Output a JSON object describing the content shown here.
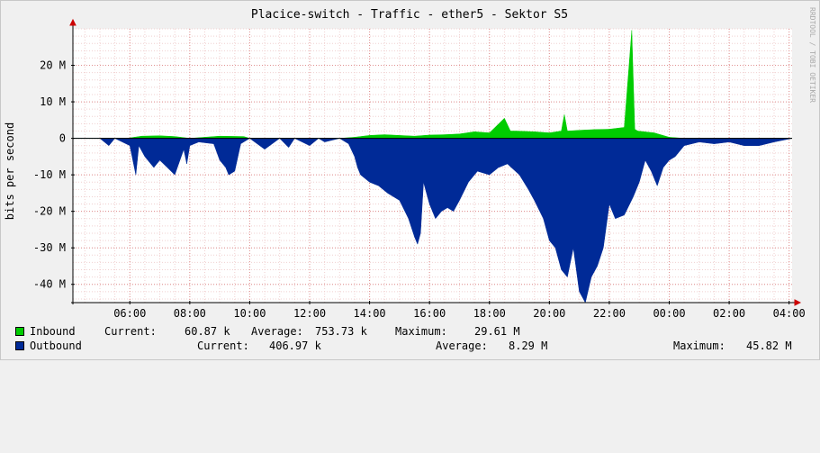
{
  "chart_data": {
    "type": "area",
    "title": "Placice-switch - Traffic - ether5 - Sektor S5",
    "ylabel": "bits per second",
    "watermark": "RRDTOOL / TOBI OETIKER",
    "y_ticks": [
      "20 M",
      "10 M",
      "0",
      "-10 M",
      "-20 M",
      "-30 M",
      "-40 M"
    ],
    "y_tick_values": [
      20,
      10,
      0,
      -10,
      -20,
      -30,
      -40
    ],
    "x_ticks": [
      "06:00",
      "08:00",
      "10:00",
      "12:00",
      "14:00",
      "16:00",
      "18:00",
      "20:00",
      "22:00",
      "00:00",
      "02:00",
      "04:00"
    ],
    "x_tick_hours": [
      6,
      8,
      10,
      12,
      14,
      16,
      18,
      20,
      22,
      24,
      26,
      28
    ],
    "xlim_hours": [
      4.1,
      28.1
    ],
    "ylim": [
      -45,
      30
    ],
    "grid": true,
    "series": [
      {
        "name": "Inbound",
        "color": "#00cc00",
        "x_hours": [
          4.1,
          5.9,
          6.4,
          7.0,
          7.5,
          8.0,
          9.0,
          9.8,
          10.0,
          13.0,
          13.5,
          14.0,
          14.5,
          15.0,
          15.5,
          16.0,
          16.5,
          17.0,
          17.5,
          18.0,
          18.5,
          18.7,
          18.9,
          19.5,
          20.0,
          20.4,
          20.5,
          20.6,
          21.0,
          21.5,
          22.0,
          22.5,
          22.75,
          22.85,
          22.95,
          23.5,
          24.0,
          24.5,
          28.1
        ],
        "values": [
          0,
          0,
          0.6,
          0.7,
          0.5,
          0,
          0.6,
          0.5,
          0,
          0,
          0.3,
          0.8,
          1.0,
          0.8,
          0.6,
          0.9,
          1.0,
          1.2,
          1.8,
          1.5,
          5.5,
          2.0,
          2.0,
          1.8,
          1.5,
          2.0,
          6.5,
          2.0,
          2.2,
          2.4,
          2.5,
          3.0,
          29.6,
          2.5,
          2.0,
          1.5,
          0.3,
          0,
          0
        ]
      },
      {
        "name": "Outbound",
        "color": "#002a97",
        "x_hours": [
          4.1,
          5.0,
          5.3,
          5.5,
          6.0,
          6.2,
          6.3,
          6.5,
          6.8,
          7.0,
          7.5,
          7.8,
          7.9,
          8.0,
          8.3,
          8.8,
          9.0,
          9.2,
          9.3,
          9.5,
          9.7,
          10.0,
          10.5,
          11.0,
          11.3,
          11.5,
          12.0,
          12.3,
          12.5,
          13.0,
          13.3,
          13.5,
          13.6,
          13.7,
          14.0,
          14.3,
          14.6,
          15.0,
          15.3,
          15.5,
          15.6,
          15.7,
          15.8,
          16.0,
          16.2,
          16.4,
          16.6,
          16.8,
          17.0,
          17.3,
          17.6,
          18.0,
          18.3,
          18.6,
          19.0,
          19.3,
          19.5,
          19.8,
          20.0,
          20.2,
          20.4,
          20.6,
          20.8,
          21.0,
          21.2,
          21.4,
          21.6,
          21.8,
          22.0,
          22.2,
          22.5,
          22.8,
          23.0,
          23.2,
          23.4,
          23.6,
          23.8,
          24.0,
          24.2,
          24.5,
          25.0,
          25.5,
          26.0,
          26.5,
          27.0,
          27.5,
          28.1
        ],
        "values": [
          0,
          0,
          -2,
          0,
          -2,
          -10,
          -2,
          -5,
          -8,
          -6,
          -10,
          -3,
          -7,
          -2,
          -1,
          -1.5,
          -6,
          -8,
          -10,
          -9,
          -1.5,
          0,
          -3,
          0,
          -2.5,
          0,
          -2,
          0,
          -1,
          0,
          -1.5,
          -5,
          -8,
          -10,
          -12,
          -13,
          -15,
          -17,
          -22,
          -27,
          -29,
          -26,
          -12,
          -18,
          -22,
          -20,
          -19,
          -20,
          -17,
          -12,
          -9,
          -10,
          -8,
          -7,
          -10,
          -14,
          -17,
          -22,
          -28,
          -30,
          -36,
          -38,
          -30,
          -42,
          -45,
          -38,
          -35,
          -30,
          -18,
          -22,
          -21,
          -16,
          -12,
          -6,
          -9,
          -13,
          -8,
          -6,
          -5,
          -2,
          -1,
          -1.5,
          -1,
          -2,
          -2,
          -1,
          0
        ]
      }
    ],
    "legend": [
      {
        "name": "Inbound",
        "color": "#00cc00",
        "current_label": "Current:",
        "current": "60.87 k",
        "average_label": "Average:",
        "average": "753.73 k",
        "maximum_label": "Maximum:",
        "maximum": "29.61 M"
      },
      {
        "name": "Outbound",
        "color": "#002a97",
        "current_label": "Current:",
        "current": "406.97 k",
        "average_label": "Average:",
        "average": "8.29 M",
        "maximum_label": "Maximum:",
        "maximum": "45.82 M"
      }
    ]
  }
}
